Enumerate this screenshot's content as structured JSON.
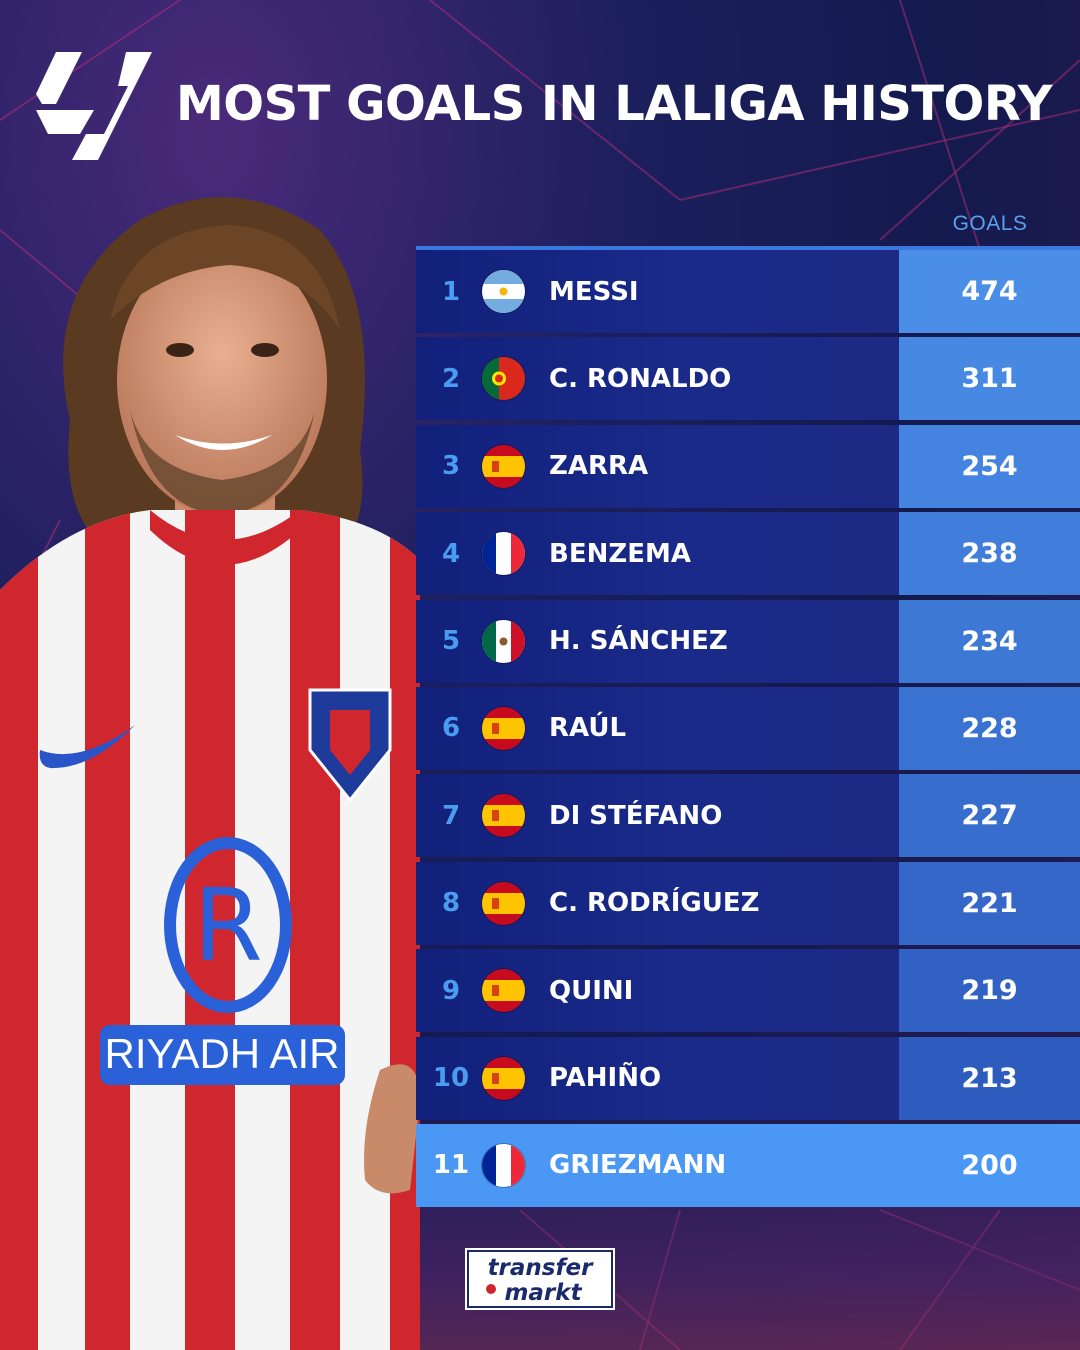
{
  "header": {
    "title": "MOST GOALS IN LALIGA HISTORY",
    "logo_icon": "laliga-logo"
  },
  "table": {
    "goals_header": "GOALS",
    "highlight_color": "#4a98f4",
    "accent_color": "#4a8ee8"
  },
  "chart_data": {
    "type": "table",
    "title": "MOST GOALS IN LALIGA HISTORY",
    "columns": [
      "",
      "",
      "",
      "GOALS"
    ],
    "rows": [
      {
        "rank": "1",
        "flag": "argentina-flag-icon",
        "name": "MESSI",
        "goals": "474"
      },
      {
        "rank": "2",
        "flag": "portugal-flag-icon",
        "name": "C. RONALDO",
        "goals": "311"
      },
      {
        "rank": "3",
        "flag": "spain-flag-icon",
        "name": "ZARRA",
        "goals": "254"
      },
      {
        "rank": "4",
        "flag": "france-flag-icon",
        "name": "BENZEMA",
        "goals": "238"
      },
      {
        "rank": "5",
        "flag": "mexico-flag-icon",
        "name": "H. SÁNCHEZ",
        "goals": "234"
      },
      {
        "rank": "6",
        "flag": "spain-flag-icon",
        "name": "RAÚL",
        "goals": "228"
      },
      {
        "rank": "7",
        "flag": "spain-flag-icon",
        "name": "DI STÉFANO",
        "goals": "227"
      },
      {
        "rank": "8",
        "flag": "spain-flag-icon",
        "name": "C. RODRÍGUEZ",
        "goals": "221"
      },
      {
        "rank": "9",
        "flag": "spain-flag-icon",
        "name": "QUINI",
        "goals": "219"
      },
      {
        "rank": "10",
        "flag": "spain-flag-icon",
        "name": "PAHIÑO",
        "goals": "213"
      },
      {
        "rank": "11",
        "flag": "france-flag-icon",
        "name": "GRIEZMANN",
        "goals": "200"
      }
    ]
  },
  "branding": {
    "source_logo": "transfermarkt-logo",
    "source_line1": "transfer",
    "source_line2": "markt"
  },
  "player_shirt_sponsor": "RIYADH AIR"
}
